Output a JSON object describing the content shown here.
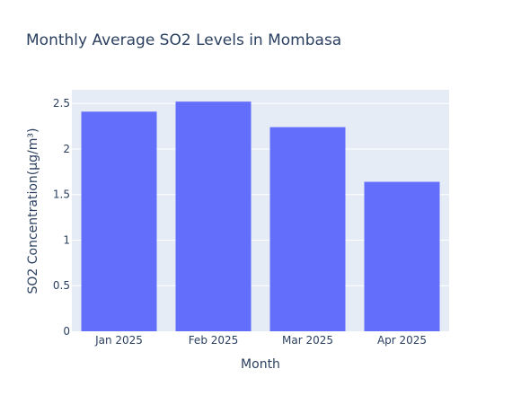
{
  "chart_data": {
    "type": "bar",
    "title": "Monthly Average SO2 Levels in Mombasa",
    "xlabel": "Month",
    "ylabel": "SO2 Concentration(μg/m³)",
    "categories": [
      "Jan 2025",
      "Feb 2025",
      "Mar 2025",
      "Apr 2025"
    ],
    "values": [
      2.41,
      2.52,
      2.24,
      1.64
    ],
    "ylim": [
      0,
      2.65
    ],
    "yticks": [
      0,
      0.5,
      1,
      1.5,
      2,
      2.5
    ],
    "ytick_labels": [
      "0",
      "0.5",
      "1",
      "1.5",
      "2",
      "2.5"
    ],
    "grid": true,
    "colors": {
      "bar": "#636efa",
      "plot_bg": "#e5ecf6",
      "text": "#2a3f5f"
    }
  }
}
